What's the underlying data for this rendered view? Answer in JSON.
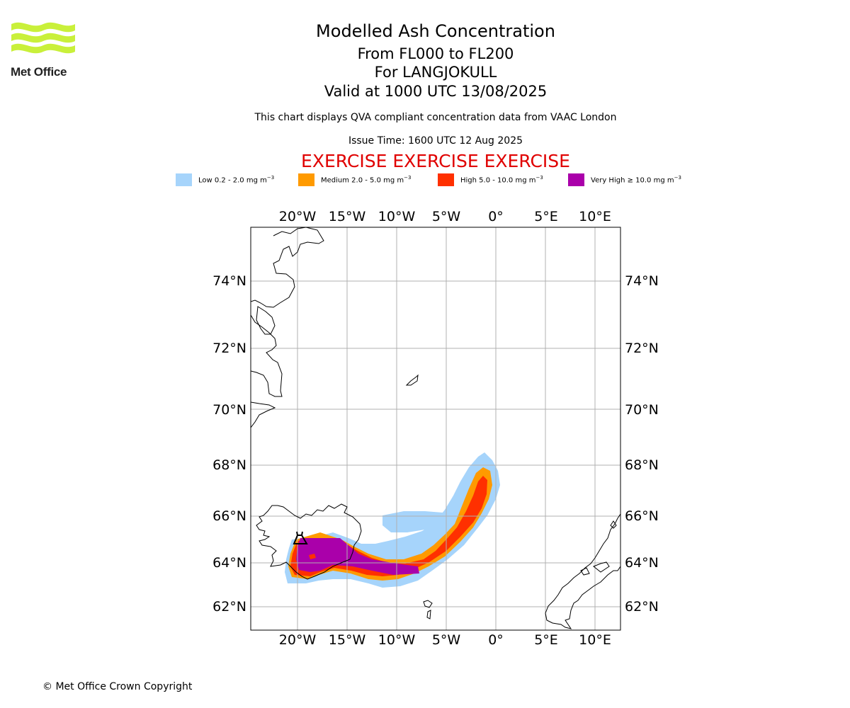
{
  "header": {
    "title": "Modelled Ash Concentration",
    "levels": "From FL000 to FL200",
    "volcano": "For LANGJOKULL",
    "valid": "Valid at 1000 UTC 13/08/2025",
    "note": "This chart displays QVA compliant concentration data from VAAC London",
    "issue_time": "Issue Time: 1600 UTC 12 Aug 2025",
    "exercise": "EXERCISE EXERCISE EXERCISE"
  },
  "logo": {
    "text": "Met Office",
    "color": "#c9f03a"
  },
  "legend": [
    {
      "label": "Low 0.2 - 2.0 mg m",
      "unit_sup": "−3",
      "color": "#a6d4fb"
    },
    {
      "label": "Medium 2.0 - 5.0 mg m",
      "unit_sup": "−3",
      "color": "#ff9a00"
    },
    {
      "label": "High 5.0 - 10.0 mg m",
      "unit_sup": "−3",
      "color": "#ff3000"
    },
    {
      "label": "Very High  ≥  10.0 mg m",
      "unit_sup": "−3",
      "color": "#aa00aa"
    }
  ],
  "map": {
    "lon_ticks": [
      "20°W",
      "15°W",
      "10°W",
      "5°W",
      "0°",
      "5°E",
      "10°E"
    ],
    "lat_ticks": [
      "74°N",
      "72°N",
      "70°N",
      "68°N",
      "66°N",
      "64°N",
      "62°N"
    ],
    "extent": {
      "lon": [
        -24.7,
        12.3
      ],
      "lat": [
        61.1,
        75.7
      ]
    },
    "grid": true,
    "volcano_marker": "volcano-icon"
  },
  "footer": {
    "copyright": "© Met Office Crown Copyright"
  }
}
